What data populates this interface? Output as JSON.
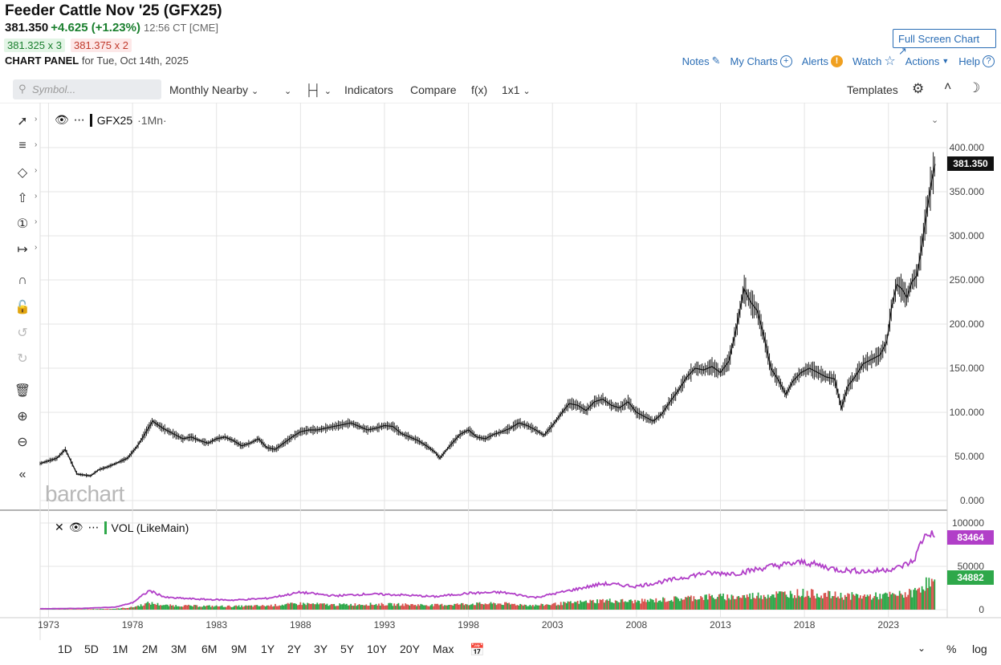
{
  "header": {
    "title": "Feeder Cattle Nov '25 (GFX25)",
    "last": "381.350",
    "change": "+4.625 (+1.23%)",
    "time": "12:56 CT [CME]",
    "bid": "381.325 x 3",
    "ask": "381.375 x 2",
    "panel_label": "CHART PANEL",
    "panel_date": "for Tue, Oct 14th, 2025"
  },
  "top_nav": {
    "fullscreen": "Full Screen Chart",
    "notes": "Notes",
    "my_charts": "My Charts",
    "alerts": "Alerts",
    "watch": "Watch",
    "actions": "Actions",
    "help": "Help"
  },
  "toolbar": {
    "search_placeholder": "Symbol...",
    "period": "Monthly Nearby",
    "indicators": "Indicators",
    "compare": "Compare",
    "fx": "f(x)",
    "layout": "1x1",
    "templates": "Templates"
  },
  "panes": {
    "price_label": "GFX25",
    "price_interval": "·1Mn·",
    "volume_label": "VOL (LikeMain)"
  },
  "badges": {
    "last_price": "381.350",
    "volume_ma": "83464",
    "volume": "34882"
  },
  "watermark": "barchart",
  "bottom_bar": {
    "ranges": [
      "1D",
      "5D",
      "1M",
      "2M",
      "3M",
      "6M",
      "9M",
      "1Y",
      "2Y",
      "3Y",
      "5Y",
      "10Y",
      "20Y",
      "Max"
    ],
    "percent": "%",
    "log": "log"
  },
  "colors": {
    "up": "#2ea84a",
    "down": "#d9534f",
    "volume_ma": "#b13fc8",
    "price_badge": "#111111",
    "link": "#2a6db5"
  },
  "chart_data": {
    "type": "line",
    "price_axis": {
      "ylim": [
        0,
        400
      ],
      "ticks": [
        "400.000",
        "350.000",
        "300.000",
        "250.000",
        "200.000",
        "150.000",
        "100.000",
        "50.000",
        "0.000"
      ]
    },
    "volume_axis": {
      "ylim": [
        0,
        100000
      ],
      "ticks": [
        "100000",
        "50000",
        "0"
      ]
    },
    "x_ticks": [
      "1973",
      "1978",
      "1983",
      "1988",
      "1993",
      "1998",
      "2003",
      "2008",
      "2013",
      "2018",
      "2023"
    ],
    "series": [
      {
        "name": "GFX25",
        "x": [
          1972.5,
          1973.5,
          1974,
          1974.7,
          1975.5,
          1976,
          1976.5,
          1977,
          1977.7,
          1978.3,
          1979.2,
          1979.8,
          1980.5,
          1981,
          1981.5,
          1982,
          1982.5,
          1983,
          1983.5,
          1984,
          1984.5,
          1985,
          1985.5,
          1986,
          1986.5,
          1987,
          1987.5,
          1988,
          1988.5,
          1989,
          1989.5,
          1990,
          1990.5,
          1991,
          1991.5,
          1992,
          1992.5,
          1993,
          1993.5,
          1994,
          1994.5,
          1995,
          1995.5,
          1996,
          1996.3,
          1996.8,
          1997.5,
          1998,
          1998.5,
          1999,
          1999.5,
          2000,
          2000.5,
          2001,
          2001.5,
          2002,
          2002.5,
          2003,
          2003.5,
          2004,
          2004.5,
          2005,
          2005.5,
          2006,
          2006.5,
          2007,
          2007.5,
          2008,
          2008.5,
          2009,
          2009.5,
          2010,
          2010.5,
          2011,
          2011.5,
          2012,
          2012.5,
          2013,
          2013.5,
          2014,
          2014.4,
          2014.8,
          2015.2,
          2015.6,
          2016,
          2016.5,
          2016.9,
          2017.3,
          2017.8,
          2018.3,
          2018.8,
          2019.3,
          2019.8,
          2020.2,
          2020.6,
          2021,
          2021.5,
          2022,
          2022.5,
          2022.9,
          2023.2,
          2023.5,
          2023.8,
          2024.1,
          2024.4,
          2024.7,
          2025,
          2025.3,
          2025.6,
          2025.78
        ],
        "values": [
          42,
          48,
          58,
          30,
          28,
          35,
          38,
          42,
          48,
          62,
          90,
          82,
          75,
          70,
          72,
          68,
          65,
          70,
          72,
          68,
          62,
          65,
          70,
          60,
          58,
          65,
          72,
          78,
          80,
          80,
          82,
          84,
          86,
          88,
          84,
          80,
          82,
          85,
          84,
          76,
          72,
          68,
          62,
          55,
          48,
          60,
          75,
          80,
          72,
          70,
          75,
          78,
          82,
          88,
          85,
          80,
          74,
          85,
          98,
          110,
          108,
          102,
          112,
          115,
          108,
          105,
          112,
          100,
          95,
          90,
          98,
          112,
          125,
          140,
          150,
          148,
          152,
          145,
          158,
          200,
          240,
          225,
          215,
          185,
          150,
          135,
          120,
          135,
          145,
          150,
          145,
          140,
          138,
          105,
          130,
          140,
          155,
          160,
          165,
          180,
          220,
          245,
          240,
          230,
          248,
          255,
          290,
          330,
          365,
          381.35
        ]
      },
      {
        "name": "VOL (LikeMain)",
        "x": [
          1972.5,
          1975,
          1977,
          1978,
          1979,
          1980,
          1982,
          1984,
          1986,
          1988,
          1990,
          1992,
          1994,
          1996,
          1998,
          2000,
          2002,
          2004,
          2006,
          2008,
          2010,
          2012,
          2014,
          2016,
          2018,
          2020,
          2022,
          2023.5,
          2024.5,
          2025,
          2025.4,
          2025.78
        ],
        "values": [
          1000,
          1500,
          3000,
          8000,
          22000,
          14000,
          12000,
          11000,
          13000,
          20000,
          16000,
          18000,
          17000,
          15000,
          19000,
          20000,
          14000,
          22000,
          30000,
          27000,
          34000,
          42000,
          42000,
          50000,
          55000,
          46000,
          44000,
          48000,
          56000,
          80000,
          90000,
          83464
        ]
      }
    ]
  }
}
